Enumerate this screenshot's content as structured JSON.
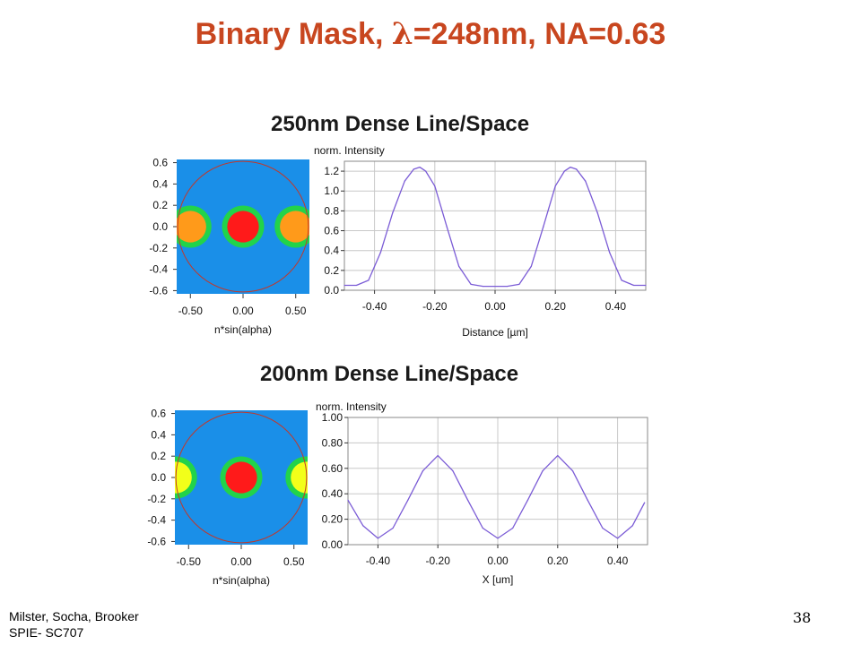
{
  "slide": {
    "title_prefix": "Binary Mask, ",
    "title_lambda": "λ",
    "title_suffix": "=248nm, NA=0.63",
    "footer_authors": "Milster, Socha, Brooker",
    "footer_course": "SPIE- SC707",
    "page_number": "38"
  },
  "colors": {
    "title": "#c8461f",
    "pupil_background": "#1a8fe8",
    "pupil_ring": "#c0392b",
    "green_halo": "#22d34a",
    "red_pole": "#ff1a1a",
    "orange_pole": "#ff9a1a",
    "yellow_pole": "#f2ff1a",
    "curve": "#7b5cd6",
    "grid": "#c8c8c8"
  },
  "panels": [
    {
      "section_title": "250nm Dense Line/Space",
      "pupil": {
        "xlabel": "n*sin(alpha)",
        "xticks": [
          "-0.50",
          "0.00",
          "0.50"
        ],
        "xtick_values": [
          -0.5,
          0.0,
          0.5
        ],
        "yticks": [
          "0.6",
          "0.4",
          "0.2",
          "0.0",
          "-0.2",
          "-0.4",
          "-0.6"
        ],
        "ytick_values": [
          0.6,
          0.4,
          0.2,
          0.0,
          -0.2,
          -0.4,
          -0.6
        ],
        "range": [
          -0.63,
          0.63
        ],
        "pupil_radius": 0.63,
        "poles": [
          {
            "center": -0.5,
            "radius": 0.15,
            "halo": 0.2,
            "color": "orange_pole"
          },
          {
            "center": 0.0,
            "radius": 0.15,
            "halo": 0.2,
            "color": "red_pole"
          },
          {
            "center": 0.5,
            "radius": 0.15,
            "halo": 0.2,
            "color": "orange_pole"
          }
        ]
      },
      "chart_data": {
        "type": "line",
        "ylabel": "norm. Intensity",
        "xlabel": "Distance [µm]",
        "xlim": [
          -0.5,
          0.5
        ],
        "ylim": [
          0,
          1.3
        ],
        "xticks": [
          -0.4,
          -0.2,
          0.0,
          0.2,
          0.4
        ],
        "xtick_labels": [
          "-0.40",
          "-0.20",
          "0.00",
          "0.20",
          "0.40"
        ],
        "yticks": [
          0.0,
          0.2,
          0.4,
          0.6,
          0.8,
          1.0,
          1.2
        ],
        "ytick_labels": [
          "0.0",
          "0.2",
          "0.4",
          "0.6",
          "0.8",
          "1.0",
          "1.2"
        ],
        "grid": true,
        "series": [
          {
            "x": [
              -0.5,
              -0.46,
              -0.42,
              -0.38,
              -0.34,
              -0.3,
              -0.27,
              -0.25,
              -0.23,
              -0.2,
              -0.16,
              -0.12,
              -0.08,
              -0.04,
              0.0,
              0.04,
              0.08,
              0.12,
              0.16,
              0.2,
              0.23,
              0.25,
              0.27,
              0.3,
              0.34,
              0.38,
              0.42,
              0.46,
              0.5
            ],
            "y": [
              0.05,
              0.05,
              0.1,
              0.38,
              0.78,
              1.1,
              1.22,
              1.24,
              1.2,
              1.05,
              0.64,
              0.24,
              0.06,
              0.04,
              0.04,
              0.04,
              0.06,
              0.24,
              0.64,
              1.05,
              1.2,
              1.24,
              1.22,
              1.1,
              0.78,
              0.38,
              0.1,
              0.05,
              0.05
            ]
          }
        ]
      }
    },
    {
      "section_title": "200nm Dense Line/Space",
      "pupil": {
        "xlabel": "n*sin(alpha)",
        "xticks": [
          "-0.50",
          "0.00",
          "0.50"
        ],
        "xtick_values": [
          -0.5,
          0.0,
          0.5
        ],
        "yticks": [
          "0.6",
          "0.4",
          "0.2",
          "0.0",
          "-0.2",
          "-0.4",
          "-0.6"
        ],
        "ytick_values": [
          0.6,
          0.4,
          0.2,
          0.0,
          -0.2,
          -0.4,
          -0.6
        ],
        "range": [
          -0.63,
          0.63
        ],
        "pupil_radius": 0.63,
        "poles": [
          {
            "center": -0.62,
            "radius": 0.15,
            "halo": 0.2,
            "color": "yellow_pole"
          },
          {
            "center": 0.0,
            "radius": 0.15,
            "halo": 0.2,
            "color": "red_pole"
          },
          {
            "center": 0.62,
            "radius": 0.15,
            "halo": 0.2,
            "color": "yellow_pole"
          }
        ]
      },
      "chart_data": {
        "type": "line",
        "ylabel": "norm. Intensity",
        "xlabel": "X [um]",
        "xlim": [
          -0.5,
          0.5
        ],
        "ylim": [
          0,
          1.0
        ],
        "xticks": [
          -0.4,
          -0.2,
          0.0,
          0.2,
          0.4
        ],
        "xtick_labels": [
          "-0.40",
          "-0.20",
          "0.00",
          "0.20",
          "0.40"
        ],
        "yticks": [
          0.0,
          0.2,
          0.4,
          0.6,
          0.8,
          1.0
        ],
        "ytick_labels": [
          "0.00",
          "0.20",
          "0.40",
          "0.60",
          "0.80",
          "1.00"
        ],
        "grid": true,
        "series": [
          {
            "x": [
              -0.5,
              -0.45,
              -0.4,
              -0.35,
              -0.3,
              -0.25,
              -0.2,
              -0.15,
              -0.1,
              -0.05,
              0.0,
              0.05,
              0.1,
              0.15,
              0.2,
              0.25,
              0.3,
              0.35,
              0.4,
              0.45,
              0.49
            ],
            "y": [
              0.35,
              0.15,
              0.05,
              0.13,
              0.35,
              0.58,
              0.7,
              0.58,
              0.35,
              0.13,
              0.05,
              0.13,
              0.35,
              0.58,
              0.7,
              0.58,
              0.35,
              0.13,
              0.05,
              0.15,
              0.33
            ]
          }
        ]
      }
    }
  ]
}
